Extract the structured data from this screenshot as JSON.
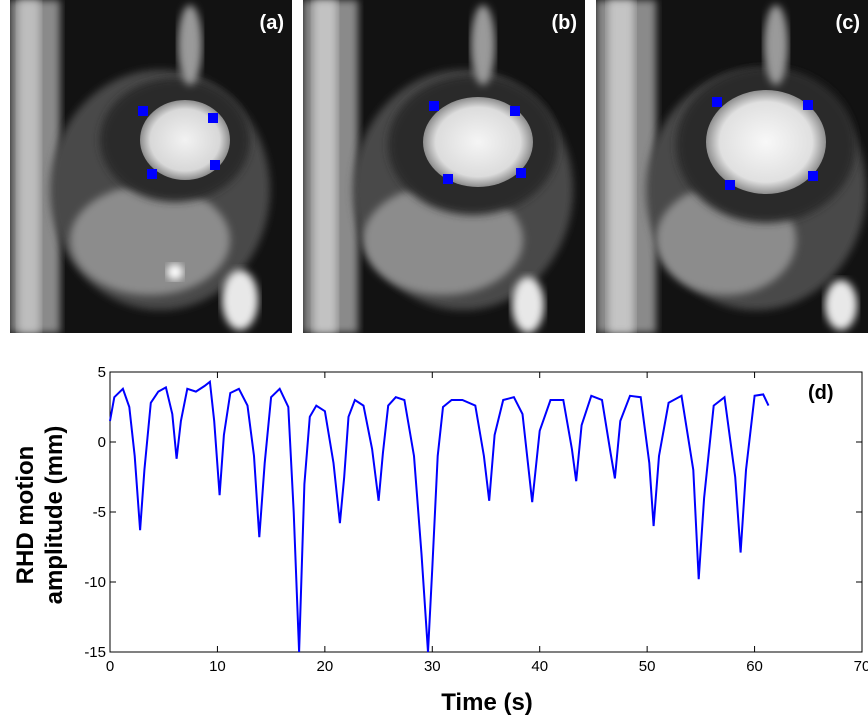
{
  "panels": [
    {
      "label": "(a)",
      "landmarks": "blue-square-markers"
    },
    {
      "label": "(b)",
      "landmarks": "blue-square-markers"
    },
    {
      "label": "(c)",
      "landmarks": "blue-square-markers"
    }
  ],
  "marker_color": "#0000ff",
  "chart_data": {
    "type": "line",
    "panel_label": "(d)",
    "xlabel": "Time (s)",
    "ylabel_line1": "RHD motion",
    "ylabel_line2": "amplitude (mm)",
    "xlim": [
      0,
      70
    ],
    "ylim": [
      -15,
      5
    ],
    "xticks": [
      0,
      10,
      20,
      30,
      40,
      50,
      60,
      70
    ],
    "yticks": [
      5,
      0,
      -5,
      -10,
      -15
    ],
    "grid": false,
    "line_color": "#0000ff",
    "series": [
      {
        "x": [
          0,
          0.4,
          1.2,
          1.8,
          2.3,
          2.8,
          3.2,
          3.8,
          4.5,
          5.2,
          5.8,
          6.2,
          6.6,
          7.2,
          8.0,
          8.8,
          9.3,
          9.7,
          10.2,
          10.6,
          11.2,
          12.0,
          12.8,
          13.4,
          13.9,
          14.4,
          15.0,
          15.8,
          16.6,
          17.1,
          17.6,
          18.1,
          18.6,
          19.2,
          20.0,
          20.8,
          21.4,
          21.8,
          22.2,
          22.8,
          23.6,
          24.4,
          25.0,
          25.4,
          25.9,
          26.6,
          27.4,
          28.3,
          29.0,
          29.6,
          30.0,
          30.5,
          31.0,
          31.8,
          32.8,
          34.0,
          34.8,
          35.3,
          35.8,
          36.6,
          37.6,
          38.4,
          38.9,
          39.3,
          40.0,
          41.0,
          42.2,
          43.0,
          43.4,
          43.9,
          44.8,
          45.8,
          46.6,
          47.0,
          47.5,
          48.4,
          49.4,
          50.2,
          50.6,
          51.1,
          52.0,
          53.2,
          54.3,
          54.8,
          55.3,
          56.2,
          57.2,
          58.2,
          58.7,
          59.2,
          60.0,
          60.8,
          61.3
        ],
        "y": [
          1.5,
          3.2,
          3.8,
          2.5,
          -1.0,
          -6.3,
          -2.0,
          2.8,
          3.6,
          3.9,
          2.0,
          -1.2,
          1.5,
          3.8,
          3.6,
          4.0,
          4.3,
          1.5,
          -3.8,
          0.5,
          3.5,
          3.8,
          2.6,
          -1.0,
          -6.8,
          -1.5,
          3.2,
          3.8,
          2.5,
          -5.0,
          -15.0,
          -3.0,
          1.8,
          2.6,
          2.2,
          -1.5,
          -5.8,
          -2.5,
          1.8,
          3.0,
          2.6,
          -0.5,
          -4.2,
          -0.8,
          2.6,
          3.2,
          3.0,
          -1.0,
          -8.0,
          -15.0,
          -9.0,
          -1.0,
          2.5,
          3.0,
          3.0,
          2.6,
          -1.0,
          -4.2,
          0.5,
          3.0,
          3.2,
          2.0,
          -1.5,
          -4.3,
          0.8,
          3.0,
          3.0,
          -0.5,
          -2.8,
          1.2,
          3.3,
          3.0,
          -0.8,
          -2.6,
          1.5,
          3.3,
          3.2,
          -1.5,
          -6.0,
          -1.0,
          2.8,
          3.3,
          -2.0,
          -9.8,
          -4.0,
          2.6,
          3.2,
          -2.5,
          -7.9,
          -2.0,
          3.3,
          3.4,
          2.6
        ]
      }
    ]
  }
}
